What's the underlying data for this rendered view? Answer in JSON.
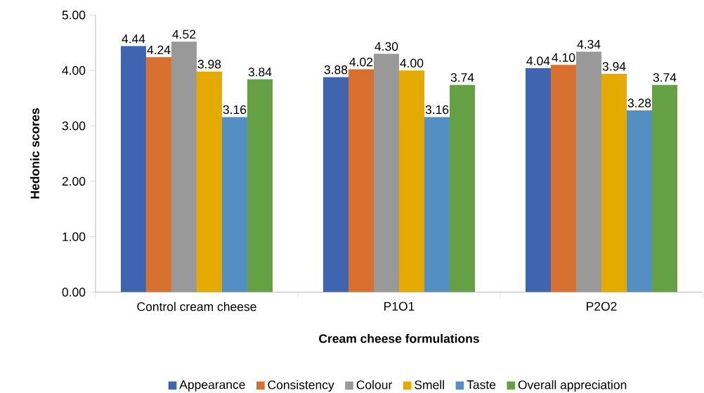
{
  "chart_data": {
    "type": "bar",
    "xlabel": "Cream cheese formulations",
    "ylabel": "Hedonic scores",
    "categories": [
      "Control cream cheese",
      "P1O1",
      "P2O2"
    ],
    "series": [
      {
        "name": "Appearance",
        "color": "#4065b0",
        "values": [
          4.44,
          3.88,
          4.04
        ],
        "value_labels": [
          "4.44",
          "3.88",
          "4.04"
        ]
      },
      {
        "name": "Consistency",
        "color": "#d8702f",
        "values": [
          4.24,
          4.02,
          4.1
        ],
        "value_labels": [
          "4.24",
          "4.02",
          "4.10"
        ]
      },
      {
        "name": "Colour",
        "color": "#999999",
        "values": [
          4.52,
          4.3,
          4.34
        ],
        "value_labels": [
          "4.52",
          "4.30",
          "4.34"
        ]
      },
      {
        "name": "Smell",
        "color": "#e5aa00",
        "values": [
          3.98,
          4.0,
          3.94
        ],
        "value_labels": [
          "3.98",
          "4.00",
          "3.94"
        ]
      },
      {
        "name": "Taste",
        "color": "#548fc4",
        "values": [
          3.16,
          3.16,
          3.28
        ],
        "value_labels": [
          "3.16",
          "3.16",
          "3.28"
        ]
      },
      {
        "name": "Overall appreciation",
        "color": "#65a044",
        "values": [
          3.84,
          3.74,
          3.74
        ],
        "value_labels": [
          "3.84",
          "3.74",
          "3.74"
        ]
      }
    ],
    "ylim": [
      0,
      5
    ],
    "yticks": [
      {
        "value": 0,
        "label": "0.00"
      },
      {
        "value": 1,
        "label": "1.00"
      },
      {
        "value": 2,
        "label": "2.00"
      },
      {
        "value": 3,
        "label": "3.00"
      },
      {
        "value": 4,
        "label": "4.00"
      },
      {
        "value": 5,
        "label": "5.00"
      }
    ],
    "legend": "bottom"
  }
}
